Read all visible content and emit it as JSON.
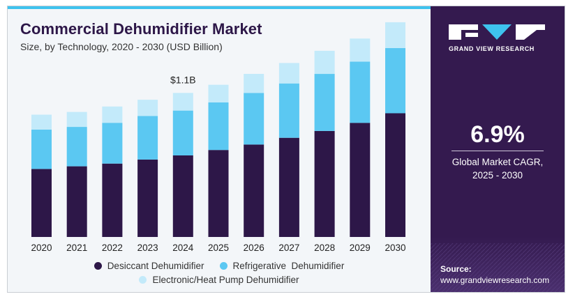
{
  "header": {
    "title": "Commercial Dehumidifier Market",
    "subtitle": "Size, by Technology, 2020 - 2030 (USD Billion)"
  },
  "colors": {
    "desiccant": "#2d1748",
    "refrigerative": "#5bc8f2",
    "electronic": "#c3eafa",
    "accent_bar": "#3ec3ee",
    "panel": "#341a4f"
  },
  "chart_data": {
    "type": "bar",
    "stacked": true,
    "categories": [
      "2020",
      "2021",
      "2022",
      "2023",
      "2024",
      "2025",
      "2026",
      "2027",
      "2028",
      "2029",
      "2030"
    ],
    "series": [
      {
        "name": "Desiccant Dehumidifier",
        "values": [
          0.5,
          0.52,
          0.54,
          0.57,
          0.6,
          0.64,
          0.68,
          0.73,
          0.78,
          0.84,
          0.91
        ]
      },
      {
        "name": "Refrigerative  Dehumidifier",
        "values": [
          0.29,
          0.29,
          0.3,
          0.32,
          0.33,
          0.35,
          0.38,
          0.4,
          0.42,
          0.45,
          0.48
        ]
      },
      {
        "name": "Electronic/Heat Pump Dehumidifier",
        "values": [
          0.11,
          0.11,
          0.12,
          0.12,
          0.13,
          0.13,
          0.14,
          0.15,
          0.17,
          0.17,
          0.19
        ]
      }
    ],
    "annotation": {
      "category": "2024",
      "text": "$1.1B"
    },
    "legend_position": "bottom",
    "grid": false
  },
  "legend": {
    "items": [
      {
        "label": "Desiccant Dehumidifier"
      },
      {
        "label": "Refrigerative  Dehumidifier"
      },
      {
        "label": "Electronic/Heat Pump Dehumidifier"
      }
    ]
  },
  "sidepanel": {
    "brand": "GRAND VIEW RESEARCH",
    "brand_icon": "gvr-logo-icon",
    "cagr_value": "6.9%",
    "cagr_label_line1": "Global Market CAGR,",
    "cagr_label_line2": "2025 - 2030",
    "source_label": "Source:",
    "source_url": "www.grandviewresearch.com"
  }
}
